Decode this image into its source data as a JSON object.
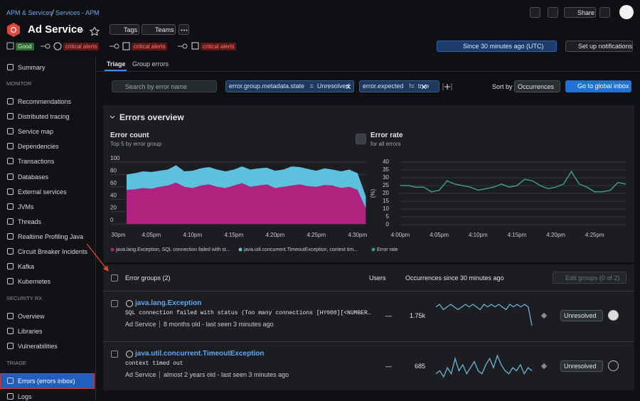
{
  "header": {
    "breadcrumb": [
      "APM & Services",
      "Services - APM"
    ],
    "title": "Ad Service",
    "tags": "Tags",
    "teams": "Teams",
    "share": "Share",
    "status": {
      "good": "Good",
      "alerts": [
        "critical alerts",
        "critical alerts",
        "critical alerts"
      ]
    },
    "time": "Since 30 minutes ago (UTC)",
    "notifications": "Set up notifications"
  },
  "sidebar": {
    "top": "Summary",
    "sections": [
      {
        "heading": "MONITOR",
        "items": [
          "Recommendations",
          "Distributed tracing",
          "Service map",
          "Dependencies",
          "Transactions",
          "Databases",
          "External services",
          "JVMs",
          "Threads",
          "Realtime Profiling Java",
          "Circuit Breaker Incidents",
          "Kafka",
          "Kubernetes"
        ]
      },
      {
        "heading": "SECURITY RX",
        "items": [
          "Overview",
          "Libraries",
          "Vulnerabilities"
        ]
      },
      {
        "heading": "TRIAGE",
        "items": [
          "Errors (errors inbox)",
          "Logs"
        ]
      }
    ],
    "selected": "Errors (errors inbox)"
  },
  "tabs": [
    "Triage",
    "Group errors"
  ],
  "filters": {
    "search": "Search by error name",
    "chips": [
      {
        "key": "error.group.metadata.state",
        "op": "=",
        "value": "Unresolved"
      },
      {
        "key": "error.expected",
        "op": "!=",
        "value": "true"
      }
    ],
    "sort_label": "Sort by",
    "sort_value": "Occurrences",
    "button": "Go to global inbox"
  },
  "overview_title": "Errors overview",
  "chart_data": [
    {
      "type": "area",
      "stacked": true,
      "title": "Error count",
      "subtitle": "Top 5 by error group",
      "grid": true,
      "categories": [
        null,
        "30pm",
        null,
        null,
        null,
        "4:05pm",
        null,
        null,
        null,
        null,
        "4:10pm",
        null,
        null,
        null,
        null,
        "4:15pm",
        null,
        null,
        null,
        null,
        "4:20pm",
        null,
        null,
        null,
        null,
        "4:25pm",
        null,
        null,
        null,
        null,
        "4:30pm",
        null
      ],
      "series": [
        {
          "name": "java.lang.Exception, SQL connection failed with st...",
          "color": "#b0227e",
          "values": [
            null,
            null,
            55,
            56,
            58,
            57,
            60,
            62,
            67,
            60,
            58,
            62,
            64,
            60,
            58,
            62,
            66,
            60,
            62,
            64,
            58,
            60,
            62,
            64,
            61,
            60,
            63,
            62,
            58,
            60,
            55,
            25
          ]
        },
        {
          "name": "java.util.concurrent.TimeoutException, context tim...",
          "color": "#5cc1dc",
          "values": [
            null,
            null,
            25,
            26,
            27,
            27,
            26,
            26,
            28,
            25,
            28,
            28,
            28,
            28,
            27,
            26,
            27,
            28,
            28,
            27,
            28,
            28,
            31,
            28,
            28,
            26,
            27,
            26,
            27,
            28,
            27,
            20
          ]
        }
      ],
      "ylim": [
        0,
        100
      ],
      "yticks": [
        0,
        20,
        40,
        60,
        80,
        100
      ]
    },
    {
      "type": "line",
      "title": "Error rate",
      "subtitle": "for all errors",
      "y_label": "(%)",
      "grid": true,
      "categories": [
        "4:00pm",
        null,
        null,
        null,
        null,
        "4:05pm",
        null,
        null,
        null,
        null,
        "4:10pm",
        null,
        null,
        null,
        null,
        "4:15pm",
        null,
        null,
        null,
        null,
        "4:20pm",
        null,
        null,
        null,
        null,
        "4:25pm",
        null,
        null,
        null,
        null
      ],
      "series": [
        {
          "name": "Error rate",
          "color": "#3f9d7c",
          "values": [
            25,
            25,
            24,
            24,
            21,
            22,
            28,
            26,
            25,
            24,
            22,
            23,
            24,
            26,
            24,
            25,
            29,
            28,
            25,
            23,
            24,
            26,
            34,
            26,
            24,
            21,
            21,
            22,
            27,
            26
          ]
        }
      ],
      "ylim": [
        0,
        40
      ],
      "yticks": [
        0,
        5,
        10,
        15,
        20,
        25,
        30,
        35,
        40
      ]
    }
  ],
  "table": {
    "columns": [
      "Error groups (2)",
      "Users",
      "Occurrences since 30 minutes ago"
    ],
    "edit": "Edit groups (0 of 2)",
    "rows": [
      {
        "name": "java.lang.Exception",
        "message": "SQL connection failed with status (Too many connections [HY000][<NUMBER…",
        "entity": "Ad Service",
        "age": "8 months old - last seen 3 minutes ago",
        "users": "—",
        "occurrences": "1.75k",
        "status": "Unresolved",
        "sparkline": [
          8,
          9,
          7,
          8,
          9,
          8,
          7,
          8,
          9,
          8,
          9,
          8,
          7,
          9,
          8,
          9,
          8,
          9,
          8,
          7,
          9,
          8,
          9,
          8,
          9,
          8,
          1
        ]
      },
      {
        "name": "java.util.concurrent.TimeoutException",
        "message": "context timed out",
        "entity": "Ad Service",
        "age": "almost 2 years old - last seen 3 minutes ago",
        "users": "—",
        "occurrences": "685",
        "status": "Unresolved",
        "sparkline": [
          3,
          4,
          2,
          5,
          3,
          8,
          4,
          6,
          3,
          5,
          7,
          4,
          3,
          6,
          8,
          5,
          9,
          6,
          4,
          3,
          5,
          4,
          6,
          3,
          5,
          4
        ]
      }
    ]
  }
}
